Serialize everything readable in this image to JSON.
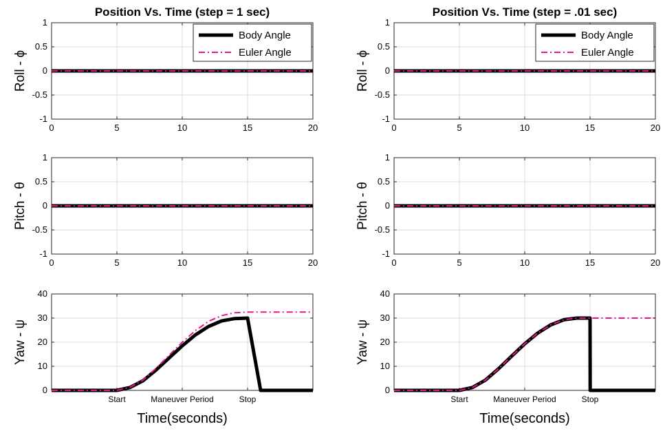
{
  "chart_data": [
    {
      "type": "line",
      "title": "Position Vs. Time (step = 1 sec)",
      "column": 0,
      "panels": [
        {
          "ylabel": "Roll - ϕ",
          "ylim": [
            -1,
            1
          ],
          "yticks": [
            -1,
            -0.5,
            0,
            0.5,
            1
          ],
          "ytick_labels": [
            "-1",
            "-0.5",
            "0",
            "0.5",
            "1"
          ],
          "xlim": [
            0,
            20
          ],
          "xticks": [
            0,
            5,
            10,
            15,
            20
          ],
          "xtick_labels": [
            "0",
            "5",
            "10",
            "15",
            "20"
          ],
          "legend": {
            "entries": [
              "Body Angle",
              "Euler Angle"
            ],
            "placement": "top-right"
          },
          "series": [
            {
              "name": "Body Angle",
              "color": "#000000",
              "style": "solid",
              "x": [
                0,
                20
              ],
              "y": [
                0,
                0
              ]
            },
            {
              "name": "Euler Angle",
              "color": "#e8168e",
              "style": "dashdot",
              "x": [
                0,
                20
              ],
              "y": [
                0,
                0
              ]
            }
          ]
        },
        {
          "ylabel": "Pitch - θ",
          "ylim": [
            -1,
            1
          ],
          "yticks": [
            -1,
            -0.5,
            0,
            0.5,
            1
          ],
          "ytick_labels": [
            "-1",
            "-0.5",
            "0",
            "0.5",
            "1"
          ],
          "xlim": [
            0,
            20
          ],
          "xticks": [
            0,
            5,
            10,
            15,
            20
          ],
          "xtick_labels": [
            "0",
            "5",
            "10",
            "15",
            "20"
          ],
          "series": [
            {
              "name": "Body Angle",
              "color": "#000000",
              "style": "solid",
              "x": [
                0,
                20
              ],
              "y": [
                0,
                0
              ]
            },
            {
              "name": "Euler Angle",
              "color": "#e8168e",
              "style": "dashdot",
              "x": [
                0,
                20
              ],
              "y": [
                0,
                0
              ]
            }
          ]
        },
        {
          "ylabel": "Yaw - ψ",
          "ylim": [
            0,
            40
          ],
          "yticks": [
            0,
            10,
            20,
            30,
            40
          ],
          "ytick_labels": [
            "0",
            "10",
            "20",
            "30",
            "40"
          ],
          "xlim": [
            0,
            20
          ],
          "xticks": [
            5,
            10,
            15
          ],
          "xtick_labels": [
            "Start",
            "Maneuver Period",
            "Stop"
          ],
          "xlabel": "Time(seconds)",
          "series": [
            {
              "name": "Body Angle",
              "color": "#000000",
              "style": "solid",
              "x": [
                0,
                5,
                6,
                7,
                8,
                9,
                10,
                11,
                12,
                13,
                14,
                15,
                16,
                20
              ],
              "y": [
                0,
                0,
                1.2,
                4,
                8.5,
                13.5,
                18.5,
                23,
                26.5,
                28.8,
                29.8,
                30,
                0,
                0
              ]
            },
            {
              "name": "Euler Angle",
              "color": "#e8168e",
              "style": "dashdot",
              "x": [
                0,
                5,
                6,
                7,
                8,
                9,
                10,
                11,
                12,
                13,
                14,
                15,
                16,
                17,
                18,
                19,
                20
              ],
              "y": [
                0,
                0,
                1.3,
                4.3,
                9.2,
                14.6,
                20,
                24.8,
                28.6,
                31,
                32.2,
                32.5,
                32.5,
                32.5,
                32.5,
                32.5,
                32.5
              ]
            }
          ]
        }
      ]
    },
    {
      "type": "line",
      "title": "Position Vs. Time (step = .01 sec)",
      "column": 1,
      "panels": [
        {
          "ylabel": "Roll - ϕ",
          "ylim": [
            -1,
            1
          ],
          "yticks": [
            -1,
            -0.5,
            0,
            0.5,
            1
          ],
          "ytick_labels": [
            "-1",
            "-0.5",
            "0",
            "0.5",
            "1"
          ],
          "xlim": [
            0,
            20
          ],
          "xticks": [
            0,
            5,
            10,
            15,
            20
          ],
          "xtick_labels": [
            "0",
            "5",
            "10",
            "15",
            "20"
          ],
          "legend": {
            "entries": [
              "Body Angle",
              "Euler Angle"
            ],
            "placement": "top-right"
          },
          "series": [
            {
              "name": "Body Angle",
              "color": "#000000",
              "style": "solid",
              "x": [
                0,
                20
              ],
              "y": [
                0,
                0
              ]
            },
            {
              "name": "Euler Angle",
              "color": "#e8168e",
              "style": "dashdot",
              "x": [
                0,
                20
              ],
              "y": [
                0,
                0
              ]
            }
          ]
        },
        {
          "ylabel": "Pitch - θ",
          "ylim": [
            -1,
            1
          ],
          "yticks": [
            -1,
            -0.5,
            0,
            0.5,
            1
          ],
          "ytick_labels": [
            "-1",
            "-0.5",
            "0",
            "0.5",
            "1"
          ],
          "xlim": [
            0,
            20
          ],
          "xticks": [
            0,
            5,
            10,
            15,
            20
          ],
          "xtick_labels": [
            "0",
            "5",
            "10",
            "15",
            "20"
          ],
          "series": [
            {
              "name": "Body Angle",
              "color": "#000000",
              "style": "solid",
              "x": [
                0,
                20
              ],
              "y": [
                0,
                0
              ]
            },
            {
              "name": "Euler Angle",
              "color": "#e8168e",
              "style": "dashdot",
              "x": [
                0,
                20
              ],
              "y": [
                0,
                0
              ]
            }
          ]
        },
        {
          "ylabel": "Yaw - ψ",
          "ylim": [
            0,
            40
          ],
          "yticks": [
            0,
            10,
            20,
            30,
            40
          ],
          "ytick_labels": [
            "0",
            "10",
            "20",
            "30",
            "40"
          ],
          "xlim": [
            0,
            20
          ],
          "xticks": [
            5,
            10,
            15
          ],
          "xtick_labels": [
            "Start",
            "Maneuver Period",
            "Stop"
          ],
          "xlabel": "Time(seconds)",
          "series": [
            {
              "name": "Body Angle",
              "color": "#000000",
              "style": "solid",
              "x": [
                0,
                5,
                6,
                7,
                8,
                9,
                10,
                11,
                12,
                13,
                14,
                15,
                15.01,
                20
              ],
              "y": [
                0,
                0,
                1.2,
                4.3,
                9,
                14.2,
                19.3,
                23.8,
                27.2,
                29.3,
                30,
                30,
                0,
                0
              ]
            },
            {
              "name": "Euler Angle",
              "color": "#e8168e",
              "style": "dashdot",
              "x": [
                0,
                5,
                6,
                7,
                8,
                9,
                10,
                11,
                12,
                13,
                14,
                15,
                20
              ],
              "y": [
                0,
                0,
                1.2,
                4.3,
                9,
                14.2,
                19.3,
                23.8,
                27.2,
                29.3,
                30,
                30,
                30
              ]
            }
          ]
        }
      ]
    }
  ]
}
